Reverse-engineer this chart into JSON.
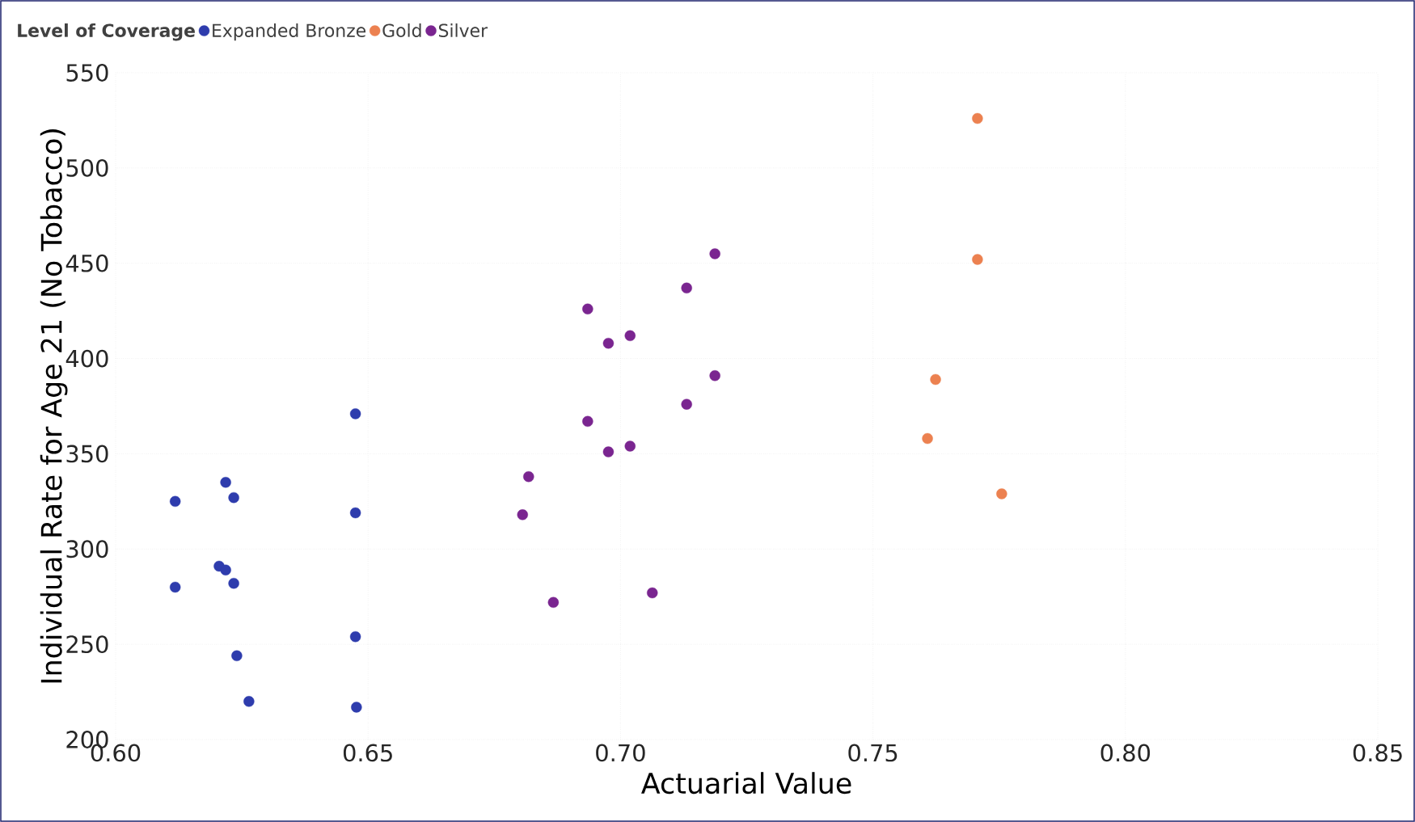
{
  "chart_data": {
    "type": "scatter",
    "xlabel": "Actuarial Value",
    "ylabel": "Individual Rate for Age 21 (No Tobacco)",
    "legend_title": "Level of Coverage",
    "legend": "top left",
    "grid": true,
    "marker": "circle",
    "xlim": [
      0.6,
      0.85
    ],
    "ylim": [
      200,
      550
    ],
    "xticks": [
      {
        "value": 0.6,
        "label": "0.60"
      },
      {
        "value": 0.65,
        "label": "0.65"
      },
      {
        "value": 0.7,
        "label": "0.70"
      },
      {
        "value": 0.75,
        "label": "0.75"
      },
      {
        "value": 0.8,
        "label": "0.80"
      },
      {
        "value": 0.85,
        "label": "0.85"
      }
    ],
    "yticks": [
      200,
      250,
      300,
      350,
      400,
      450,
      500,
      550
    ],
    "series": [
      {
        "name": "Expanded Bronze",
        "color": "#2e3cad",
        "x": [
          0.6118,
          0.6218,
          0.6234,
          0.6205,
          0.6218,
          0.6234,
          0.6118,
          0.624,
          0.6264,
          0.6477,
          0.6475,
          0.6475,
          0.6475
        ],
        "values": [
          325,
          335,
          327,
          291,
          289,
          282,
          280,
          244,
          220,
          217,
          254,
          319,
          371
        ]
      },
      {
        "name": "Gold",
        "color": "#ec8150",
        "x": [
          0.7707,
          0.7707,
          0.7624,
          0.7608,
          0.7755
        ],
        "values": [
          526,
          452,
          389,
          358,
          329
        ]
      },
      {
        "name": "Silver",
        "color": "#7a2590",
        "x": [
          0.6806,
          0.6818,
          0.6867,
          0.6935,
          0.6935,
          0.6976,
          0.6976,
          0.7019,
          0.7019,
          0.7063,
          0.7131,
          0.7131,
          0.7187,
          0.7187
        ],
        "values": [
          318,
          338,
          272,
          367,
          426,
          408,
          351,
          412,
          354,
          277,
          437,
          376,
          455,
          391
        ]
      }
    ]
  }
}
